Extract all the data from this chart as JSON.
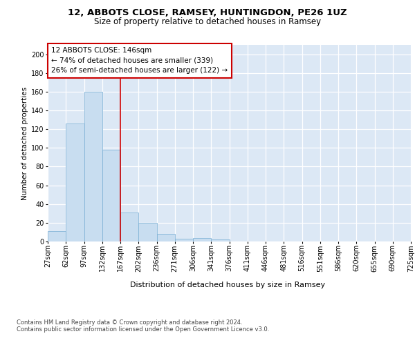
{
  "title1": "12, ABBOTS CLOSE, RAMSEY, HUNTINGDON, PE26 1UZ",
  "title2": "Size of property relative to detached houses in Ramsey",
  "xlabel": "Distribution of detached houses by size in Ramsey",
  "ylabel": "Number of detached properties",
  "bar_color": "#c8ddf0",
  "bar_edge_color": "#7aafd4",
  "bar_values": [
    11,
    126,
    160,
    98,
    31,
    20,
    8,
    3,
    4,
    2,
    0,
    0,
    0,
    0,
    0,
    0,
    0,
    0,
    0,
    0
  ],
  "bin_labels": [
    "27sqm",
    "62sqm",
    "97sqm",
    "132sqm",
    "167sqm",
    "202sqm",
    "236sqm",
    "271sqm",
    "306sqm",
    "341sqm",
    "376sqm",
    "411sqm",
    "446sqm",
    "481sqm",
    "516sqm",
    "551sqm",
    "586sqm",
    "620sqm",
    "655sqm",
    "690sqm",
    "725sqm"
  ],
  "ylim": [
    0,
    210
  ],
  "yticks": [
    0,
    20,
    40,
    60,
    80,
    100,
    120,
    140,
    160,
    180,
    200
  ],
  "vline_x": 4.0,
  "vline_color": "#cc0000",
  "annotation_text": "12 ABBOTS CLOSE: 146sqm\n← 74% of detached houses are smaller (339)\n26% of semi-detached houses are larger (122) →",
  "annotation_box_color": "#ffffff",
  "annotation_box_edge": "#cc0000",
  "footer_text": "Contains HM Land Registry data © Crown copyright and database right 2024.\nContains public sector information licensed under the Open Government Licence v3.0.",
  "bg_color": "#dce8f5",
  "grid_color": "#ffffff",
  "title1_fontsize": 9.5,
  "title2_fontsize": 8.5,
  "xlabel_fontsize": 8,
  "ylabel_fontsize": 7.5,
  "tick_fontsize": 7,
  "annotation_fontsize": 7.5,
  "footer_fontsize": 6
}
